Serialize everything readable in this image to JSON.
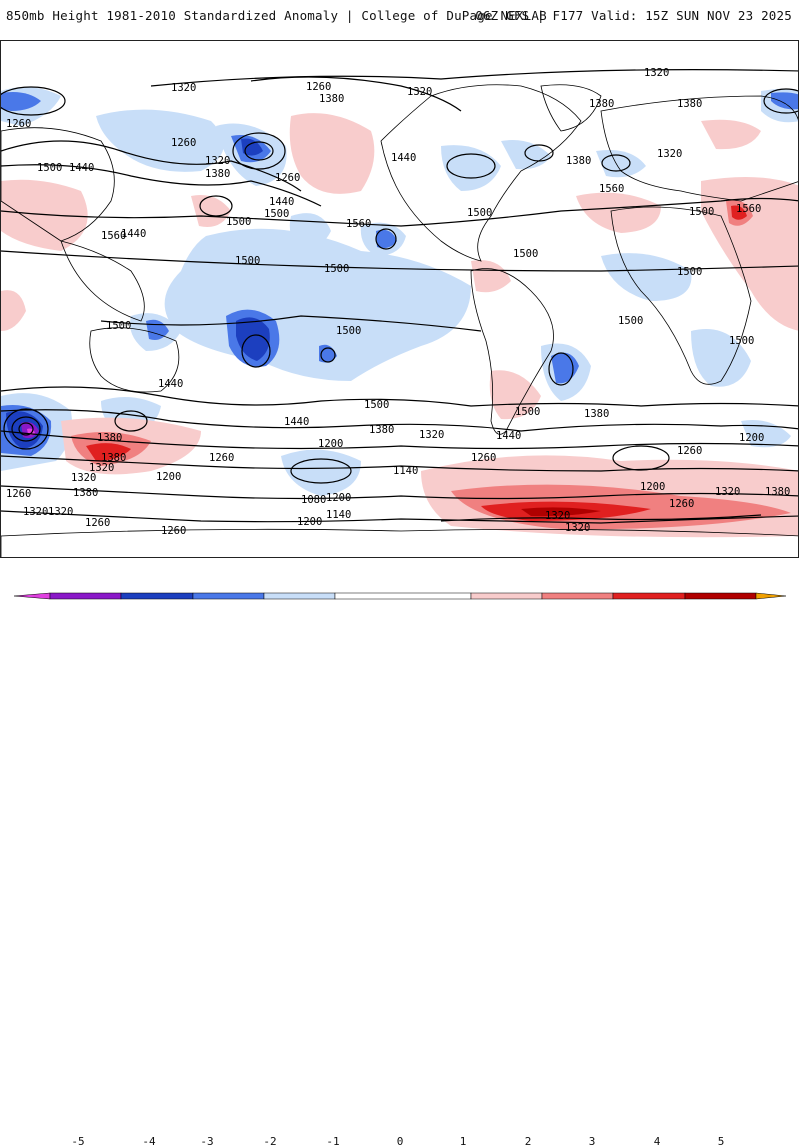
{
  "header": {
    "title": "850mb Height 1981-2010 Standardized Anomaly | College of DuPage NEXLAB",
    "run_info": "06Z GFS | F177 Valid: 15Z SUN NOV 23 2025"
  },
  "colors": {
    "neg5": "#e040e0",
    "neg4": "#8a18c8",
    "neg3": "#1c3fbf",
    "neg2": "#4a78e8",
    "neg1": "#c8def8",
    "pos1": "#f8cccc",
    "pos2": "#f08080",
    "pos3": "#e02020",
    "pos4": "#b00000",
    "pos5": "#f0a000",
    "contour": "#000000",
    "land": "#000000"
  },
  "colorbar": {
    "ticks": [
      "-5",
      "-4",
      "-3",
      "-2",
      "-1",
      "0",
      "1",
      "2",
      "3",
      "4",
      "5"
    ]
  },
  "contour_labels": [
    "1320",
    "1260",
    "1380",
    "1320",
    "1320",
    "1380",
    "1380",
    "1260",
    "1260",
    "1320",
    "1380",
    "1500",
    "1440",
    "1260",
    "1440",
    "1500",
    "1440",
    "1380",
    "1560",
    "1560",
    "1500",
    "1500",
    "1500",
    "1500",
    "1560",
    "1500",
    "1500",
    "1500",
    "1500",
    "1500",
    "1440",
    "1500",
    "1500",
    "1380",
    "1440",
    "1380",
    "1320",
    "1380",
    "1320",
    "1200",
    "1200",
    "1260",
    "1260",
    "1200",
    "1260",
    "1140",
    "1200",
    "1080",
    "1140",
    "1200",
    "1260",
    "1320",
    "1260",
    "1320",
    "1380",
    "1320",
    "1320",
    "1260",
    "1380",
    "1320",
    "1440",
    "1500",
    "1440",
    "1500",
    "1200",
    "1260",
    "1320",
    "1380",
    "1320",
    "1560"
  ]
}
